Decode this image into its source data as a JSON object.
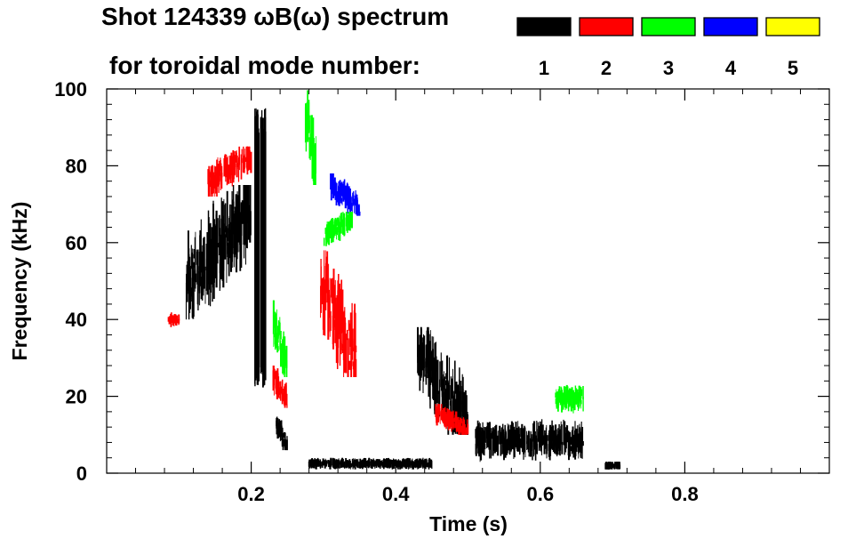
{
  "title_line1": "Shot 124339 ωB(ω) spectrum",
  "title_line2": "for toroidal mode number:",
  "legend": [
    {
      "label": "1",
      "color": "#000000"
    },
    {
      "label": "2",
      "color": "#ff0000"
    },
    {
      "label": "3",
      "color": "#00ff00"
    },
    {
      "label": "4",
      "color": "#0000ff"
    },
    {
      "label": "5",
      "color": "#ffff00"
    }
  ],
  "chart_data": {
    "type": "heatmap",
    "title": "Shot 124339 ωB(ω) spectrum for toroidal mode number",
    "xlabel": "Time (s)",
    "ylabel": "Frequency (kHz)",
    "xlim": [
      0.0,
      1.0
    ],
    "ylim": [
      0,
      100
    ],
    "xticks": [
      0.2,
      0.4,
      0.6,
      0.8
    ],
    "yticks": [
      0,
      20,
      40,
      60,
      80,
      100
    ],
    "regions": [
      {
        "mode": 1,
        "t": [
          0.11,
          0.2
        ],
        "f": [
          40,
          75
        ],
        "trend": "rising"
      },
      {
        "mode": 2,
        "t": [
          0.14,
          0.2
        ],
        "f": [
          72,
          85
        ],
        "trend": "rising"
      },
      {
        "mode": 2,
        "t": [
          0.085,
          0.1
        ],
        "f": [
          38,
          42
        ],
        "trend": "flat"
      },
      {
        "mode": 1,
        "t": [
          0.205,
          0.22
        ],
        "f": [
          22,
          95
        ],
        "trend": "vertical"
      },
      {
        "mode": 3,
        "t": [
          0.23,
          0.25
        ],
        "f": [
          25,
          45
        ],
        "trend": "falling"
      },
      {
        "mode": 2,
        "t": [
          0.23,
          0.25
        ],
        "f": [
          17,
          28
        ],
        "trend": "falling"
      },
      {
        "mode": 1,
        "t": [
          0.235,
          0.25
        ],
        "f": [
          6,
          15
        ],
        "trend": "falling"
      },
      {
        "mode": 3,
        "t": [
          0.275,
          0.29
        ],
        "f": [
          75,
          100
        ],
        "trend": "falling"
      },
      {
        "mode": 2,
        "t": [
          0.295,
          0.345
        ],
        "f": [
          25,
          58
        ],
        "trend": "falling"
      },
      {
        "mode": 4,
        "t": [
          0.31,
          0.35
        ],
        "f": [
          67,
          78
        ],
        "trend": "falling"
      },
      {
        "mode": 3,
        "t": [
          0.3,
          0.34
        ],
        "f": [
          59,
          68
        ],
        "trend": "rising"
      },
      {
        "mode": 1,
        "t": [
          0.43,
          0.5
        ],
        "f": [
          10,
          38
        ],
        "trend": "falling"
      },
      {
        "mode": 2,
        "t": [
          0.455,
          0.5
        ],
        "f": [
          10,
          18
        ],
        "trend": "falling"
      },
      {
        "mode": 1,
        "t": [
          0.51,
          0.66
        ],
        "f": [
          2,
          15
        ],
        "trend": "flat"
      },
      {
        "mode": 3,
        "t": [
          0.62,
          0.66
        ],
        "f": [
          15,
          24
        ],
        "trend": "flat"
      },
      {
        "mode": 1,
        "t": [
          0.28,
          0.45
        ],
        "f": [
          1,
          4
        ],
        "trend": "flat"
      },
      {
        "mode": 1,
        "t": [
          0.69,
          0.71
        ],
        "f": [
          1,
          3
        ],
        "trend": "flat"
      }
    ]
  }
}
